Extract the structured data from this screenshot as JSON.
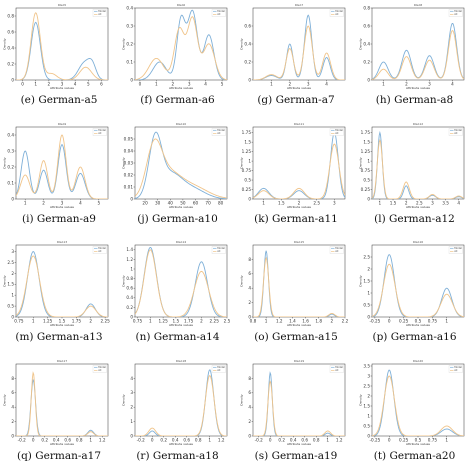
{
  "colors": {
    "series_a": "#7fb0d8",
    "series_b": "#f0c48a",
    "axis": "#333333"
  },
  "chart_data": [
    {
      "type": "line",
      "caption": "(e) German-a5",
      "title": "RGA5",
      "xlabel": "Attribute values",
      "ylabel": "Density",
      "legend_entries": [
        "Model",
        "All"
      ],
      "xlim": [
        -0.5,
        6.5
      ],
      "ylim": [
        0,
        0.9
      ],
      "xticks": [
        0,
        1,
        2,
        3,
        4,
        5,
        6
      ],
      "yticks": [
        0,
        0.2,
        0.4,
        0.6,
        0.8
      ],
      "series": [
        {
          "peaks": [
            [
              1,
              0.72,
              0.35
            ],
            [
              4.7,
              0.21,
              0.45
            ],
            [
              5.3,
              0.16,
              0.3
            ]
          ]
        },
        {
          "peaks": [
            [
              1,
              0.84,
              0.35
            ],
            [
              2.2,
              0.08,
              0.4
            ],
            [
              4.8,
              0.16,
              0.45
            ]
          ]
        }
      ]
    },
    {
      "type": "line",
      "caption": "(f) German-a6",
      "title": "RGA6",
      "xlabel": "Attribute values",
      "ylabel": "Density",
      "legend_entries": [
        "Model",
        "All"
      ],
      "xlim": [
        -0.3,
        5.3
      ],
      "ylim": [
        0,
        0.4
      ],
      "xticks": [
        0,
        1,
        2,
        3,
        4,
        5
      ],
      "yticks": [
        0,
        0.1,
        0.2,
        0.3,
        0.4
      ],
      "series": [
        {
          "peaks": [
            [
              1.2,
              0.1,
              0.4
            ],
            [
              2.5,
              0.33,
              0.25
            ],
            [
              3.2,
              0.38,
              0.3
            ],
            [
              4.2,
              0.25,
              0.3
            ]
          ]
        },
        {
          "peaks": [
            [
              1,
              0.12,
              0.45
            ],
            [
              2.4,
              0.28,
              0.3
            ],
            [
              3.2,
              0.34,
              0.3
            ],
            [
              4.2,
              0.2,
              0.35
            ]
          ]
        }
      ]
    },
    {
      "type": "line",
      "caption": "(g) German-a7",
      "title": "RGA7",
      "xlabel": "Attribute values",
      "ylabel": "Density",
      "legend_entries": [
        "Model",
        "All"
      ],
      "xlim": [
        0,
        5
      ],
      "ylim": [
        0,
        0.8
      ],
      "xticks": [
        1,
        2,
        3,
        4
      ],
      "yticks": [
        0,
        0.2,
        0.4,
        0.6
      ],
      "series": [
        {
          "peaks": [
            [
              1,
              0.05,
              0.3
            ],
            [
              2,
              0.4,
              0.18
            ],
            [
              3,
              0.72,
              0.2
            ],
            [
              4,
              0.25,
              0.2
            ]
          ]
        },
        {
          "peaks": [
            [
              1,
              0.06,
              0.3
            ],
            [
              2,
              0.35,
              0.2
            ],
            [
              3,
              0.6,
              0.22
            ],
            [
              4,
              0.3,
              0.22
            ]
          ]
        }
      ]
    },
    {
      "type": "line",
      "caption": "(h) German-a8",
      "title": "RGA8",
      "xlabel": "Attribute values",
      "ylabel": "Density",
      "legend_entries": [
        "Model",
        "All"
      ],
      "xlim": [
        0.5,
        4.5
      ],
      "ylim": [
        0,
        0.8
      ],
      "xticks": [
        1,
        2,
        3,
        4
      ],
      "yticks": [
        0,
        0.2,
        0.4,
        0.6,
        0.8
      ],
      "series": [
        {
          "peaks": [
            [
              1,
              0.2,
              0.2
            ],
            [
              2,
              0.33,
              0.2
            ],
            [
              3,
              0.27,
              0.2
            ],
            [
              4,
              0.63,
              0.18
            ]
          ]
        },
        {
          "peaks": [
            [
              1,
              0.12,
              0.2
            ],
            [
              2,
              0.26,
              0.2
            ],
            [
              3,
              0.22,
              0.2
            ],
            [
              4,
              0.55,
              0.18
            ]
          ]
        }
      ]
    },
    {
      "type": "line",
      "caption": "(i) German-a9",
      "title": "RGA9",
      "xlabel": "Attribute values",
      "ylabel": "Density",
      "legend_entries": [
        "Model",
        "All"
      ],
      "xlim": [
        0.5,
        5.5
      ],
      "ylim": [
        0,
        0.45
      ],
      "xticks": [
        1,
        2,
        3,
        4,
        5
      ],
      "yticks": [
        0,
        0.1,
        0.2,
        0.3,
        0.4
      ],
      "series": [
        {
          "peaks": [
            [
              1,
              0.3,
              0.22
            ],
            [
              2,
              0.18,
              0.22
            ],
            [
              3,
              0.34,
              0.22
            ],
            [
              4,
              0.16,
              0.25
            ]
          ]
        },
        {
          "peaks": [
            [
              1,
              0.15,
              0.25
            ],
            [
              2,
              0.24,
              0.22
            ],
            [
              3,
              0.4,
              0.22
            ],
            [
              4,
              0.2,
              0.25
            ]
          ]
        }
      ]
    },
    {
      "type": "line",
      "caption": "(j) German-a10",
      "title": "RGA10",
      "xlabel": "Attribute values",
      "ylabel": "Density",
      "legend_entries": [
        "Model",
        "All"
      ],
      "xlim": [
        12,
        85
      ],
      "ylim": [
        0,
        0.06
      ],
      "xticks": [
        20,
        30,
        40,
        50,
        60,
        70,
        80
      ],
      "yticks": [
        0,
        0.01,
        0.02,
        0.03,
        0.04,
        0.05
      ],
      "series": [
        {
          "peaks": [
            [
              28,
              0.047,
              5
            ],
            [
              40,
              0.02,
              9
            ],
            [
              58,
              0.008,
              10
            ]
          ]
        },
        {
          "peaks": [
            [
              27,
              0.038,
              6
            ],
            [
              38,
              0.02,
              10
            ],
            [
              58,
              0.01,
              12
            ]
          ]
        }
      ]
    },
    {
      "type": "line",
      "caption": "(k) German-a11",
      "title": "RGA11",
      "xlabel": "Attribute values",
      "ylabel": "Density",
      "legend_entries": [
        "Model",
        "All"
      ],
      "xlim": [
        0.7,
        3.3
      ],
      "ylim": [
        0,
        1.9
      ],
      "xticks": [
        1.0,
        1.5,
        2.0,
        2.5,
        3.0
      ],
      "yticks": [
        0,
        0.25,
        0.5,
        0.75,
        1.0,
        1.25,
        1.5,
        1.75
      ],
      "series": [
        {
          "peaks": [
            [
              1,
              0.28,
              0.15
            ],
            [
              2,
              0.22,
              0.15
            ],
            [
              3,
              1.75,
              0.11
            ]
          ]
        },
        {
          "peaks": [
            [
              1,
              0.22,
              0.15
            ],
            [
              2,
              0.28,
              0.15
            ],
            [
              3,
              1.45,
              0.13
            ]
          ]
        }
      ]
    },
    {
      "type": "line",
      "caption": "(l) German-a12",
      "title": "RGA12",
      "xlabel": "Attribute values",
      "ylabel": "Density",
      "legend_entries": [
        "Model",
        "All"
      ],
      "xlim": [
        0.7,
        4.2
      ],
      "ylim": [
        0,
        1.9
      ],
      "xticks": [
        1.0,
        1.5,
        2.0,
        2.5,
        3.0,
        3.5,
        4.0
      ],
      "yticks": [
        0,
        0.25,
        0.5,
        0.75,
        1.0,
        1.25,
        1.5,
        1.75
      ],
      "series": [
        {
          "peaks": [
            [
              1,
              1.75,
              0.09
            ],
            [
              2,
              0.35,
              0.1
            ],
            [
              3,
              0.1,
              0.12
            ],
            [
              4,
              0.06,
              0.12
            ]
          ]
        },
        {
          "peaks": [
            [
              1,
              1.55,
              0.1
            ],
            [
              2,
              0.45,
              0.12
            ],
            [
              3,
              0.12,
              0.12
            ],
            [
              4,
              0.08,
              0.12
            ]
          ]
        }
      ]
    },
    {
      "type": "line",
      "caption": "(m) German-a13",
      "title": "RGA13",
      "xlabel": "Attribute values",
      "ylabel": "Density",
      "legend_entries": [
        "Model",
        "All"
      ],
      "xlim": [
        0.7,
        2.3
      ],
      "ylim": [
        0,
        3.3
      ],
      "xticks": [
        0.75,
        1.0,
        1.25,
        1.5,
        1.75,
        2.0,
        2.25
      ],
      "yticks": [
        0,
        0.5,
        1.0,
        1.5,
        2.0,
        2.5,
        3.0
      ],
      "series": [
        {
          "peaks": [
            [
              1,
              3.0,
              0.1
            ],
            [
              2,
              0.6,
              0.08
            ]
          ]
        },
        {
          "peaks": [
            [
              1,
              2.8,
              0.11
            ],
            [
              2,
              0.5,
              0.09
            ]
          ]
        }
      ]
    },
    {
      "type": "line",
      "caption": "(n) German-a14",
      "title": "RGA14",
      "xlabel": "Attribute values",
      "ylabel": "Density",
      "legend_entries": [
        "Model",
        "All"
      ],
      "xlim": [
        0.7,
        2.5
      ],
      "ylim": [
        0,
        1.5
      ],
      "xticks": [
        0.75,
        1.0,
        1.25,
        1.5,
        1.75,
        2.0,
        2.25,
        2.5
      ],
      "yticks": [
        0,
        0.2,
        0.4,
        0.6,
        0.8,
        1.0,
        1.2,
        1.4
      ],
      "series": [
        {
          "peaks": [
            [
              1,
              1.45,
              0.12
            ],
            [
              2,
              1.15,
              0.12
            ]
          ]
        },
        {
          "peaks": [
            [
              1,
              1.4,
              0.12
            ],
            [
              2,
              0.95,
              0.14
            ]
          ]
        }
      ]
    },
    {
      "type": "line",
      "caption": "(o) German-a15",
      "title": "RGA15",
      "xlabel": "Attribute values",
      "ylabel": "Density",
      "legend_entries": [
        "Model",
        "All"
      ],
      "xlim": [
        0.8,
        2.2
      ],
      "ylim": [
        0,
        10
      ],
      "xticks": [
        0.8,
        1.0,
        1.2,
        1.4,
        1.6,
        1.8,
        2.0,
        2.2
      ],
      "yticks": [
        0,
        2,
        4,
        6,
        8
      ],
      "series": [
        {
          "peaks": [
            [
              1,
              9.2,
              0.035
            ],
            [
              2,
              0.4,
              0.04
            ]
          ]
        },
        {
          "peaks": [
            [
              1,
              8.2,
              0.04
            ],
            [
              2,
              0.5,
              0.045
            ]
          ]
        }
      ]
    },
    {
      "type": "line",
      "caption": "(p) German-a16",
      "title": "RGA16",
      "xlabel": "Attribute values",
      "ylabel": "Density",
      "legend_entries": [
        "Model",
        "All"
      ],
      "xlim": [
        -0.3,
        1.3
      ],
      "ylim": [
        0,
        3.0
      ],
      "xticks": [
        -0.5,
        -0.25,
        0.0,
        0.25,
        0.5,
        0.75,
        1.0
      ],
      "yticks": [
        0,
        0.5,
        1.0,
        1.5,
        2.0,
        2.5
      ],
      "series": [
        {
          "peaks": [
            [
              0,
              2.6,
              0.09
            ],
            [
              1,
              1.2,
              0.09
            ]
          ]
        },
        {
          "peaks": [
            [
              0,
              2.2,
              0.1
            ],
            [
              1,
              0.95,
              0.1
            ]
          ]
        }
      ]
    },
    {
      "type": "line",
      "caption": "(q) German-a17",
      "title": "RGA17",
      "xlabel": "Attribute values",
      "ylabel": "Density",
      "legend_entries": [
        "Model",
        "All"
      ],
      "xlim": [
        -0.3,
        1.3
      ],
      "ylim": [
        0,
        10
      ],
      "xticks": [
        -0.2,
        0.0,
        0.2,
        0.4,
        0.6,
        0.8,
        1.0,
        1.2
      ],
      "yticks": [
        0,
        2,
        4,
        6,
        8
      ],
      "series": [
        {
          "peaks": [
            [
              0,
              7.8,
              0.04
            ],
            [
              1,
              0.8,
              0.05
            ]
          ]
        },
        {
          "peaks": [
            [
              0,
              8.8,
              0.035
            ],
            [
              1,
              0.6,
              0.05
            ]
          ]
        }
      ]
    },
    {
      "type": "line",
      "caption": "(r) German-a18",
      "title": "RGA18",
      "xlabel": "Attribute values",
      "ylabel": "Density",
      "legend_entries": [
        "Model",
        "All"
      ],
      "xlim": [
        -0.3,
        1.3
      ],
      "ylim": [
        0,
        5
      ],
      "xticks": [
        -0.2,
        0.0,
        0.2,
        0.4,
        0.6,
        0.8,
        1.0,
        1.2
      ],
      "yticks": [
        0,
        1,
        2,
        3,
        4
      ],
      "series": [
        {
          "peaks": [
            [
              0,
              0.35,
              0.05
            ],
            [
              1,
              4.6,
              0.07
            ]
          ]
        },
        {
          "peaks": [
            [
              0,
              0.55,
              0.06
            ],
            [
              1,
              4.2,
              0.075
            ]
          ]
        }
      ]
    },
    {
      "type": "line",
      "caption": "(s) German-a19",
      "title": "RGA19",
      "xlabel": "Attribute values",
      "ylabel": "Density",
      "legend_entries": [
        "Model",
        "All"
      ],
      "xlim": [
        -0.3,
        1.3
      ],
      "ylim": [
        0,
        10
      ],
      "xticks": [
        -0.2,
        0.0,
        0.2,
        0.4,
        0.6,
        0.8,
        1.0,
        1.2
      ],
      "yticks": [
        0,
        2,
        4,
        6,
        8
      ],
      "series": [
        {
          "peaks": [
            [
              0,
              8.8,
              0.035
            ],
            [
              1,
              0.4,
              0.045
            ]
          ]
        },
        {
          "peaks": [
            [
              0,
              7.6,
              0.04
            ],
            [
              1,
              0.7,
              0.05
            ]
          ]
        }
      ]
    },
    {
      "type": "line",
      "caption": "(t) German-a20",
      "title": "RGA20",
      "xlabel": "Attribute values",
      "ylabel": "Density",
      "legend_entries": [
        "Model",
        "All"
      ],
      "xlim": [
        -0.3,
        1.3
      ],
      "ylim": [
        0,
        3.6
      ],
      "xticks": [
        -0.5,
        -0.25,
        0.0,
        0.25,
        0.5,
        0.75,
        1.0
      ],
      "yticks": [
        0,
        0.5,
        1.0,
        1.5,
        2.0,
        2.5,
        3.0,
        3.5
      ],
      "series": [
        {
          "peaks": [
            [
              0,
              3.3,
              0.08
            ],
            [
              1,
              0.35,
              0.1
            ]
          ]
        },
        {
          "peaks": [
            [
              0,
              3.0,
              0.09
            ],
            [
              1,
              0.5,
              0.1
            ]
          ]
        }
      ]
    }
  ]
}
